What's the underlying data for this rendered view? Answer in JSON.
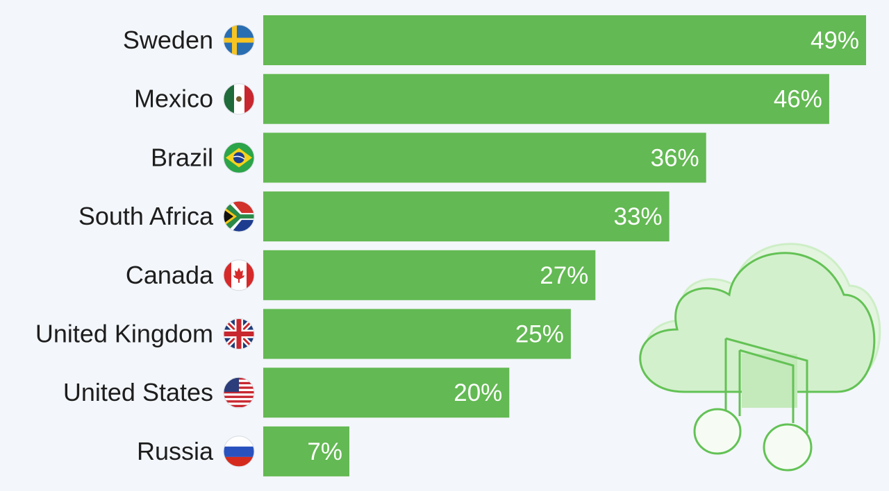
{
  "chart_data": {
    "type": "bar",
    "orientation": "horizontal",
    "categories": [
      "Sweden",
      "Mexico",
      "Brazil",
      "South Africa",
      "Canada",
      "United Kingdom",
      "United States",
      "Russia"
    ],
    "values": [
      49,
      46,
      36,
      33,
      27,
      25,
      20,
      7
    ],
    "value_labels": [
      "49%",
      "46%",
      "36%",
      "33%",
      "27%",
      "25%",
      "20%",
      "7%"
    ],
    "flag_icons": [
      "sweden-flag-icon",
      "mexico-flag-icon",
      "brazil-flag-icon",
      "south-africa-flag-icon",
      "canada-flag-icon",
      "united-kingdom-flag-icon",
      "united-states-flag-icon",
      "russia-flag-icon"
    ],
    "xlim": [
      0,
      49
    ],
    "grid": false,
    "title": "",
    "xlabel": "",
    "ylabel": "",
    "decoration": "music-cloud-icon"
  },
  "colors": {
    "bar": "#63b953",
    "background": "#f3f6fa",
    "label_text": "#1d1d1d",
    "value_text": "#ffffff",
    "cloud_fill": "#d3f0cc",
    "cloud_stroke": "#63c255"
  }
}
